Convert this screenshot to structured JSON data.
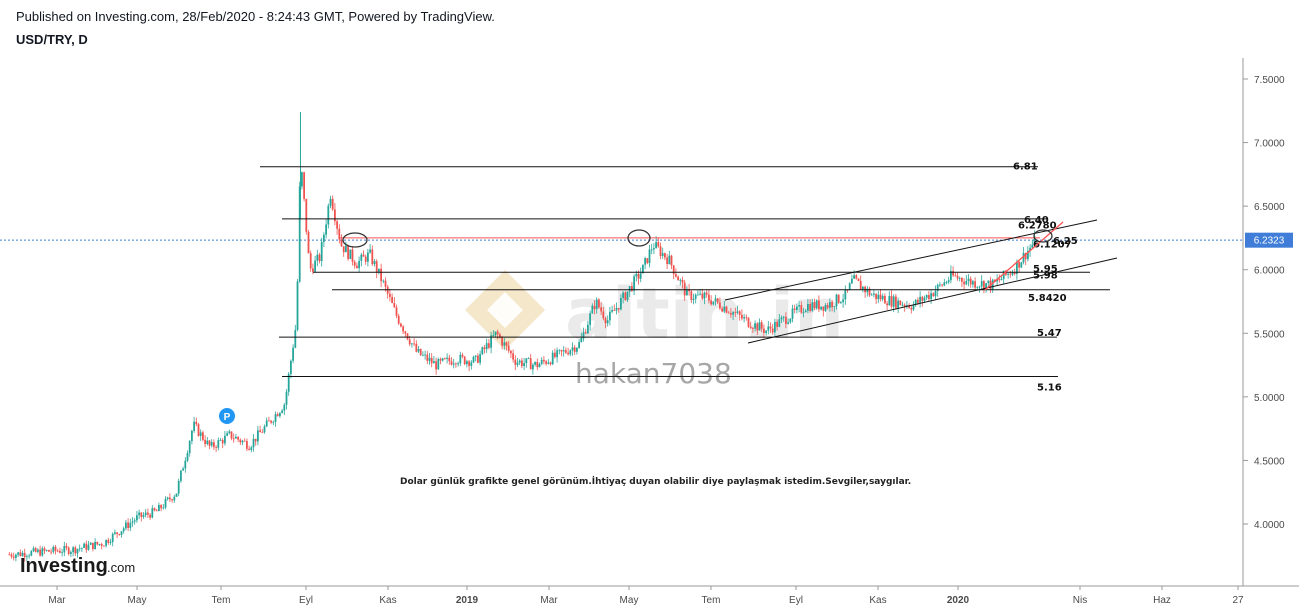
{
  "header": {
    "published": "Published on Investing.com, 28/Feb/2020 - 8:24:43 GMT, Powered by TradingView.",
    "symbol": "USD/TRY, D"
  },
  "watermarks": {
    "user": "hakan7038",
    "brand": "altin.in"
  },
  "logo": {
    "main": "Investing",
    "suffix": ".com"
  },
  "marker_badge": "P",
  "note_text": "Dolar günlük grafikte genel görünüm.İhtiyaç duyan olabilir diye paylaşmak istedim.Sevgiler,saygılar.",
  "colors": {
    "up": "#26a69a",
    "down": "#ef5350",
    "price_tag": "#3f7dd8",
    "channel_red": "#ff5252"
  },
  "chart_data": {
    "type": "candlestick",
    "title": "USD/TRY, D",
    "x_ticks": [
      "Mar",
      "May",
      "Tem",
      "Eyl",
      "Kas",
      "2019",
      "Mar",
      "May",
      "Tem",
      "Eyl",
      "Kas",
      "2020",
      "Nis",
      "Haz",
      "27"
    ],
    "y_ticks": [
      "7.5000",
      "7.0000",
      "6.5000",
      "6.0000",
      "5.5000",
      "5.0000",
      "4.5000",
      "4.0000"
    ],
    "ylim": [
      3.55,
      7.68
    ],
    "last_price": "6.2323",
    "levels": [
      {
        "label": "6.81",
        "value": 6.81
      },
      {
        "label": "6.40",
        "value": 6.4
      },
      {
        "label": "6.2780",
        "value": 6.278
      },
      {
        "label": "6.25",
        "value": 6.25
      },
      {
        "label": "6.1207",
        "value": 6.1207
      },
      {
        "label": "5.98",
        "value": 5.98
      },
      {
        "label": "5.95",
        "value": 5.95
      },
      {
        "label": "5.8420",
        "value": 5.842
      },
      {
        "label": "5.47",
        "value": 5.47
      },
      {
        "label": "5.16",
        "value": 5.16
      }
    ],
    "price_path": [
      [
        "2018-01-02",
        3.76
      ],
      [
        "2018-01-25",
        3.78
      ],
      [
        "2018-02-20",
        3.8
      ],
      [
        "2018-03-15",
        3.85
      ],
      [
        "2018-04-10",
        4.05
      ],
      [
        "2018-04-25",
        4.1
      ],
      [
        "2018-05-10",
        4.25
      ],
      [
        "2018-05-23",
        4.78
      ],
      [
        "2018-06-05",
        4.6
      ],
      [
        "2018-06-20",
        4.7
      ],
      [
        "2018-07-05",
        4.62
      ],
      [
        "2018-07-20",
        4.8
      ],
      [
        "2018-08-01",
        4.95
      ],
      [
        "2018-08-10",
        5.6
      ],
      [
        "2018-08-13",
        6.88
      ],
      [
        "2018-08-20",
        6.0
      ],
      [
        "2018-08-28",
        6.1
      ],
      [
        "2018-09-05",
        6.6
      ],
      [
        "2018-09-13",
        6.2
      ],
      [
        "2018-09-25",
        6.05
      ],
      [
        "2018-10-05",
        6.12
      ],
      [
        "2018-10-15",
        5.9
      ],
      [
        "2018-10-25",
        5.65
      ],
      [
        "2018-11-10",
        5.35
      ],
      [
        "2018-11-25",
        5.25
      ],
      [
        "2018-12-10",
        5.3
      ],
      [
        "2018-12-25",
        5.28
      ],
      [
        "2019-01-10",
        5.5
      ],
      [
        "2019-01-25",
        5.28
      ],
      [
        "2019-02-10",
        5.25
      ],
      [
        "2019-02-25",
        5.32
      ],
      [
        "2019-03-15",
        5.42
      ],
      [
        "2019-03-27",
        5.75
      ],
      [
        "2019-04-05",
        5.6
      ],
      [
        "2019-04-20",
        5.82
      ],
      [
        "2019-05-02",
        6.0
      ],
      [
        "2019-05-10",
        6.2
      ],
      [
        "2019-05-22",
        6.08
      ],
      [
        "2019-06-05",
        5.8
      ],
      [
        "2019-06-20",
        5.78
      ],
      [
        "2019-07-05",
        5.7
      ],
      [
        "2019-07-20",
        5.6
      ],
      [
        "2019-08-05",
        5.52
      ],
      [
        "2019-08-20",
        5.62
      ],
      [
        "2019-09-05",
        5.72
      ],
      [
        "2019-09-20",
        5.72
      ],
      [
        "2019-10-05",
        5.8
      ],
      [
        "2019-10-10",
        5.92
      ],
      [
        "2019-10-25",
        5.8
      ],
      [
        "2019-11-10",
        5.75
      ],
      [
        "2019-11-25",
        5.72
      ],
      [
        "2019-12-10",
        5.82
      ],
      [
        "2019-12-25",
        5.95
      ],
      [
        "2020-01-10",
        5.9
      ],
      [
        "2020-01-25",
        5.88
      ],
      [
        "2020-02-10",
        6.0
      ],
      [
        "2020-02-27",
        6.23
      ]
    ]
  }
}
